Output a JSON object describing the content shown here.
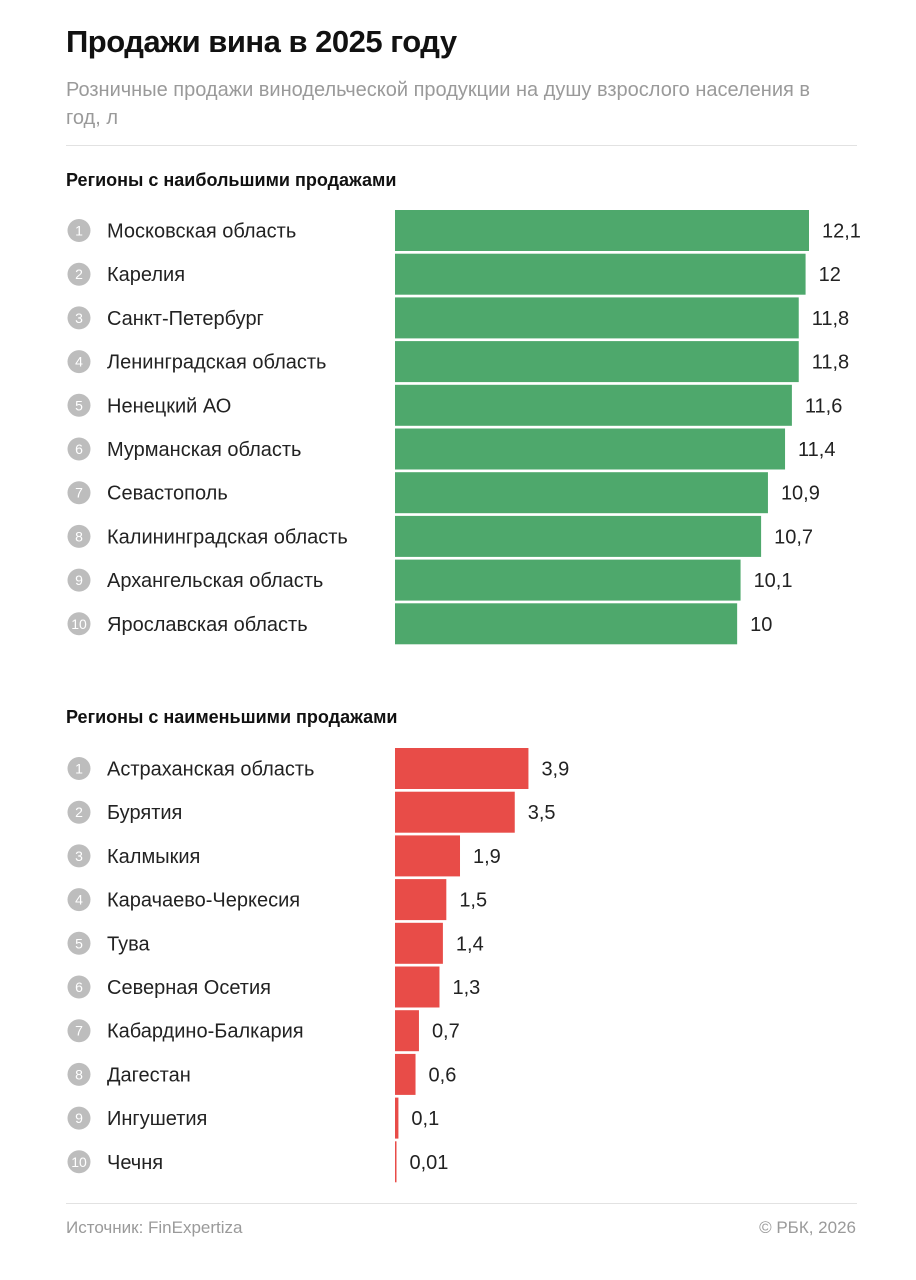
{
  "title": "Продажи вина в 2025 году",
  "subtitle": "Розничные продажи винодельческой продукции на душу взрослого населения в год, л",
  "footer": {
    "source": "Источник: FinExpertiza",
    "copyright": "© РБК, 2026"
  },
  "colors": {
    "top": "#4ea86c",
    "bottom": "#e84c48",
    "rank_circle": "#bdbdbd"
  },
  "chart_data": [
    {
      "type": "bar",
      "orientation": "horizontal",
      "title": "Регионы с наибольшими продажами",
      "categories": [
        "Московская область",
        "Карелия",
        "Санкт-Петербург",
        "Ленинградская область",
        "Ненецкий АО",
        "Мурманская область",
        "Севастополь",
        "Калининградская область",
        "Архангельская область",
        "Ярославская область"
      ],
      "values": [
        12.1,
        12,
        11.8,
        11.8,
        11.6,
        11.4,
        10.9,
        10.7,
        10.1,
        10
      ],
      "labels": [
        "12,1",
        "12",
        "11,8",
        "11,8",
        "11,6",
        "11,4",
        "10,9",
        "10,7",
        "10,1",
        "10"
      ],
      "ranks": [
        "1",
        "2",
        "3",
        "4",
        "5",
        "6",
        "7",
        "8",
        "9",
        "10"
      ],
      "xlim": [
        0,
        12.1
      ],
      "grid": false
    },
    {
      "type": "bar",
      "orientation": "horizontal",
      "title": "Регионы с наименьшими продажами",
      "categories": [
        "Астраханская область",
        "Бурятия",
        "Калмыкия",
        "Карачаево-Черкесия",
        "Тува",
        "Северная Осетия",
        "Кабардино-Балкария",
        "Дагестан",
        "Ингушетия",
        "Чечня"
      ],
      "values": [
        3.9,
        3.5,
        1.9,
        1.5,
        1.4,
        1.3,
        0.7,
        0.6,
        0.1,
        0.01
      ],
      "labels": [
        "3,9",
        "3,5",
        "1,9",
        "1,5",
        "1,4",
        "1,3",
        "0,7",
        "0,6",
        "0,1",
        "0,01"
      ],
      "ranks": [
        "1",
        "2",
        "3",
        "4",
        "5",
        "6",
        "7",
        "8",
        "9",
        "10"
      ],
      "xlim": [
        0,
        12.1
      ],
      "grid": false
    }
  ]
}
